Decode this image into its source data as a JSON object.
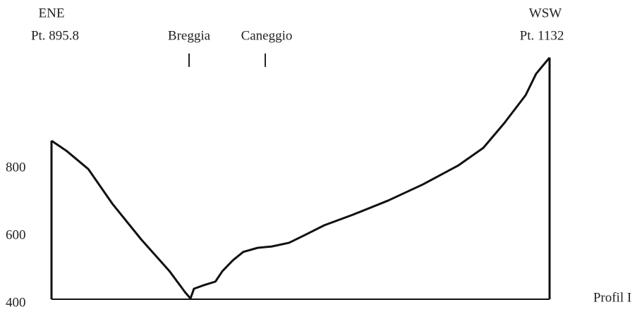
{
  "chart_data": {
    "type": "line",
    "annotations": [
      "ENE",
      "Pt. 895.8",
      "Breggia",
      "Caneggio",
      "WSW",
      "Pt. 1132",
      "Profil I"
    ],
    "x": [
      0,
      3.1,
      7.4,
      12.3,
      18.0,
      23.7,
      26.8,
      27.9,
      28.6,
      30.7,
      32.9,
      34.3,
      36.4,
      38.5,
      41.4,
      44.2,
      47.7,
      50.6,
      54.8,
      60.5,
      67.6,
      74.6,
      81.7,
      86.7,
      90.9,
      95.2,
      97.3,
      100
    ],
    "series": [
      {
        "color": "#111111",
        "values": [
          869,
          838,
          785,
          681,
          577,
          483,
          421,
          402,
          431,
          442,
          452,
          483,
          515,
          540,
          552,
          556,
          567,
          588,
          619,
          650,
          692,
          740,
          796,
          848,
          921,
          1004,
          1067,
          1115
        ]
      }
    ],
    "xlim": [
      0,
      100
    ],
    "ylim": [
      400,
      1150
    ],
    "yticks": [
      400,
      600,
      800
    ],
    "grid": false
  }
}
